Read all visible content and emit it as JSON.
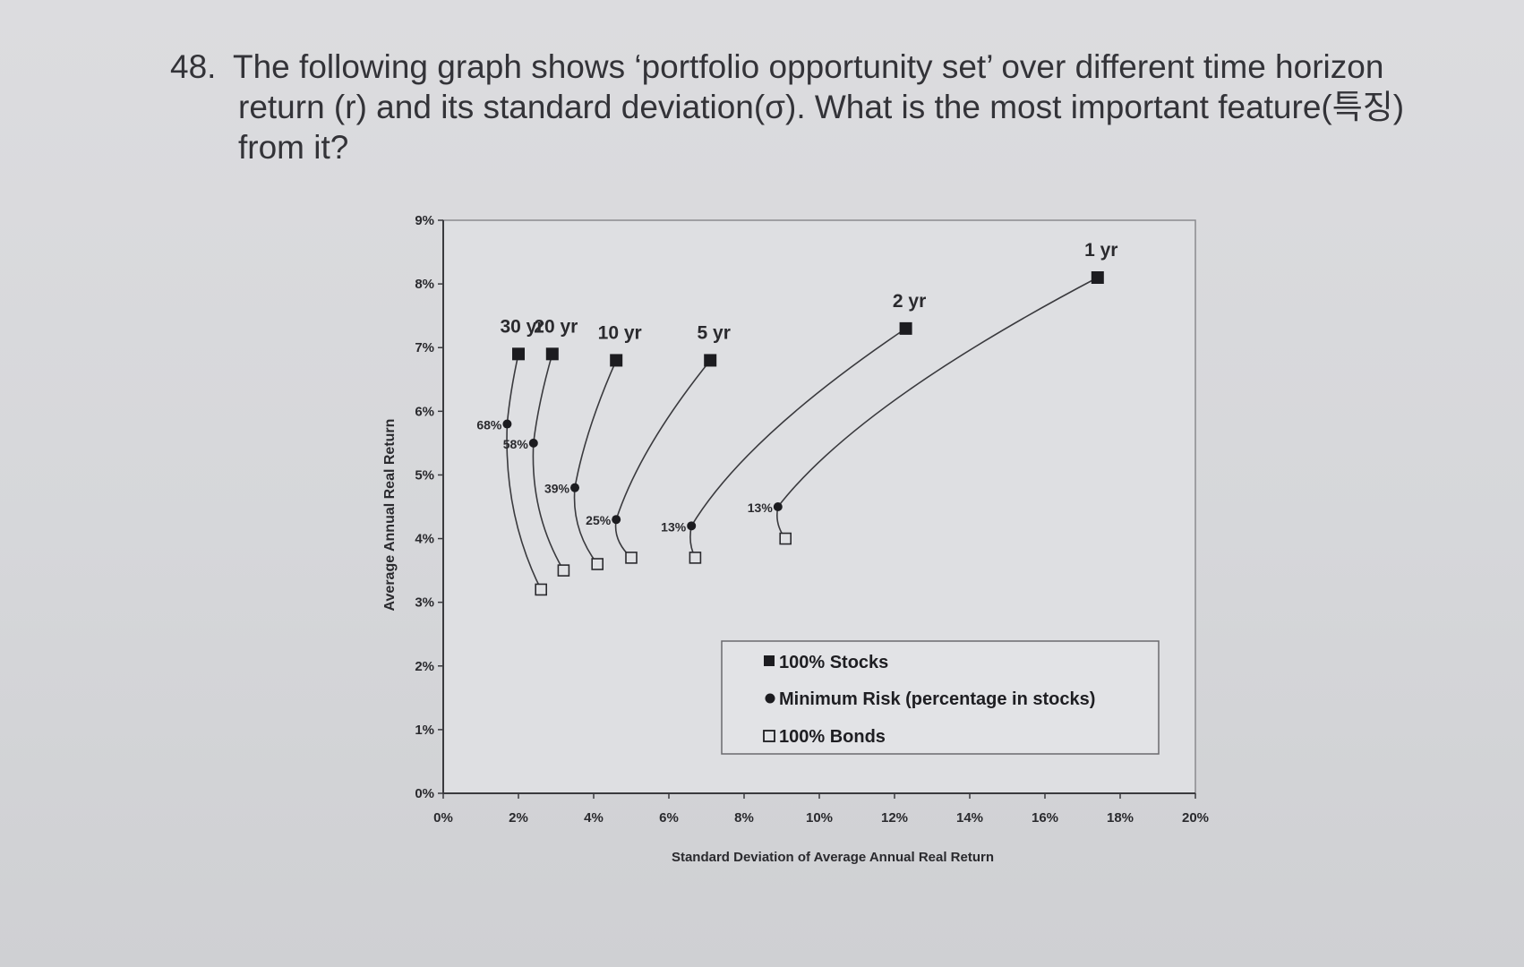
{
  "question": {
    "number": "48.",
    "line1": "The following graph shows ‘portfolio opportunity set’ over different time horizon",
    "line2": "return (r) and its standard deviation(σ). What is the most important feature(특징)",
    "line3": "from it?"
  },
  "chart_data": {
    "type": "scatter",
    "title": "",
    "xlabel": "Standard Deviation of Average Annual Real Return",
    "ylabel": "Average Annual Real Return",
    "xlim": [
      0,
      20
    ],
    "ylim": [
      0,
      9
    ],
    "x_ticks": [
      "0%",
      "2%",
      "4%",
      "6%",
      "8%",
      "10%",
      "12%",
      "14%",
      "16%",
      "18%",
      "20%"
    ],
    "y_ticks": [
      "0%",
      "1%",
      "2%",
      "3%",
      "4%",
      "5%",
      "6%",
      "7%",
      "8%",
      "9%"
    ],
    "grid": false,
    "legend_position": "bottom-right",
    "legend": [
      {
        "marker": "filled-square",
        "label": "100% Stocks"
      },
      {
        "marker": "filled-circle",
        "label": "Minimum Risk (percentage in stocks)"
      },
      {
        "marker": "open-square",
        "label": "100% Bonds"
      }
    ],
    "series": [
      {
        "horizon": "30 yr",
        "stocks": [
          2.0,
          6.9
        ],
        "min_risk": [
          1.7,
          5.8
        ],
        "min_risk_label": "68%",
        "bonds": [
          2.6,
          3.2
        ]
      },
      {
        "horizon": "20 yr",
        "stocks": [
          2.9,
          6.9
        ],
        "min_risk": [
          2.4,
          5.5
        ],
        "min_risk_label": "58%",
        "bonds": [
          3.2,
          3.5
        ]
      },
      {
        "horizon": "10 yr",
        "stocks": [
          4.6,
          6.8
        ],
        "min_risk": [
          3.5,
          4.8
        ],
        "min_risk_label": "39%",
        "bonds": [
          4.1,
          3.6
        ]
      },
      {
        "horizon": "5 yr",
        "stocks": [
          7.1,
          6.8
        ],
        "min_risk": [
          4.6,
          4.3
        ],
        "min_risk_label": "25%",
        "bonds": [
          5.0,
          3.7
        ]
      },
      {
        "horizon": "2 yr",
        "stocks": [
          12.3,
          7.3
        ],
        "min_risk": [
          6.6,
          4.2
        ],
        "min_risk_label": "13%",
        "bonds": [
          6.7,
          3.7
        ]
      },
      {
        "horizon": "1 yr",
        "stocks": [
          17.4,
          8.1
        ],
        "min_risk": [
          8.9,
          4.5
        ],
        "min_risk_label": "13%",
        "bonds": [
          9.1,
          4.0
        ]
      }
    ]
  }
}
